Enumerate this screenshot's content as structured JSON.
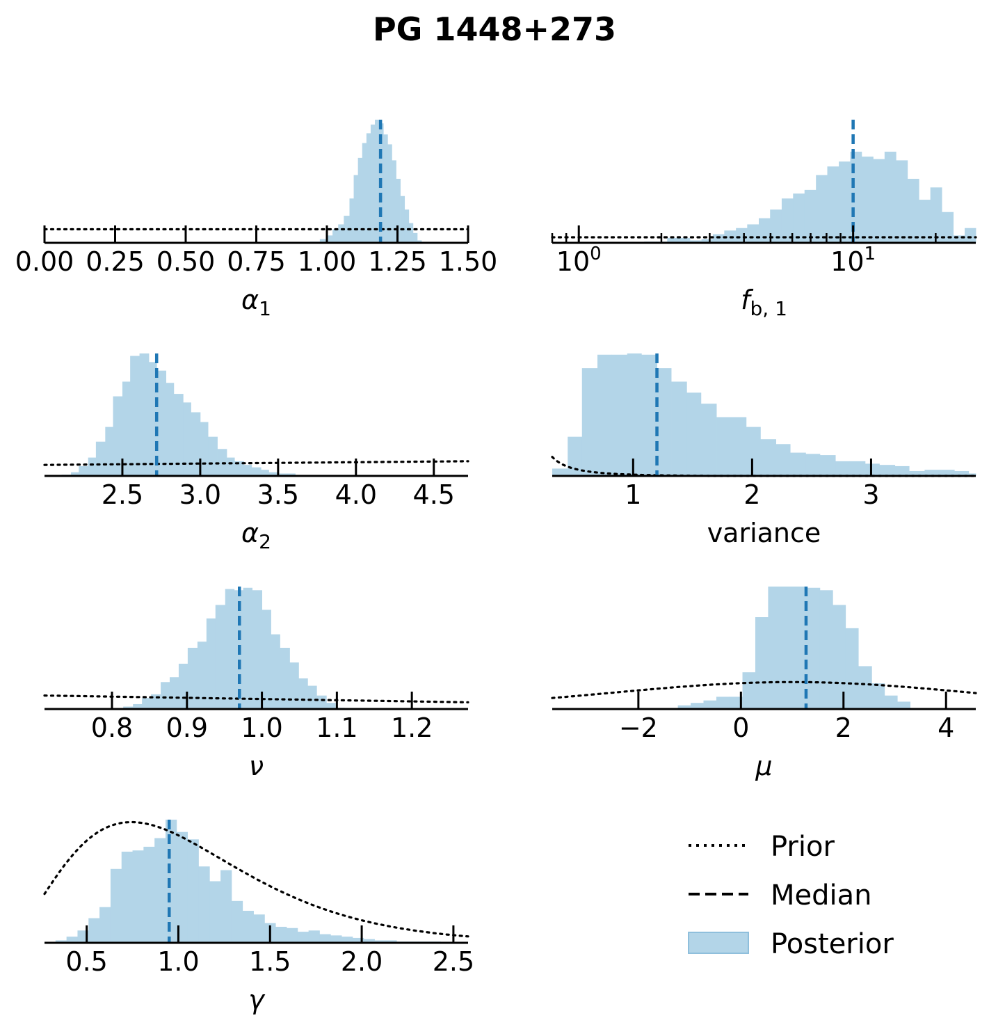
{
  "title": "PG 1448+273",
  "legend": {
    "location": "bottom-right",
    "items": [
      {
        "label": "Prior",
        "style": "dotted"
      },
      {
        "label": "Median",
        "style": "dashed"
      },
      {
        "label": "Posterior",
        "style": "fill"
      }
    ]
  },
  "colors": {
    "posterior_fill": "#b3d5e8",
    "median_line": "#1f77b4",
    "prior_line": "#000000",
    "legend_patch_edge": "#8fbfdc"
  },
  "chart_data": [
    {
      "type": "histogram",
      "param": "alpha1",
      "xlabel": {
        "base": "α",
        "sub": "1",
        "italic": true
      },
      "xlim": [
        0.0,
        1.5
      ],
      "xscale": "linear",
      "ticks": [
        0.0,
        0.25,
        0.5,
        0.75,
        1.0,
        1.25,
        1.5
      ],
      "tick_labels": [
        "0.00",
        "0.25",
        "0.50",
        "0.75",
        "1.00",
        "1.25",
        "1.50"
      ],
      "bin_edges": [
        0.94,
        0.975,
        1.0,
        1.02,
        1.04,
        1.06,
        1.08,
        1.095,
        1.11,
        1.125,
        1.14,
        1.155,
        1.17,
        1.185,
        1.2,
        1.215,
        1.23,
        1.245,
        1.26,
        1.275,
        1.29,
        1.305,
        1.32,
        1.335
      ],
      "counts": [
        0.01,
        0.03,
        0.06,
        0.11,
        0.15,
        0.22,
        0.36,
        0.55,
        0.69,
        0.81,
        0.89,
        0.96,
        1.0,
        0.97,
        0.88,
        0.8,
        0.67,
        0.52,
        0.38,
        0.27,
        0.16,
        0.08,
        0.02
      ],
      "median": 1.19,
      "prior": {
        "kind": "uniform",
        "level": 0.11
      }
    },
    {
      "type": "histogram",
      "param": "f_b1",
      "xlabel": {
        "base": "f",
        "sub": "b, 1",
        "italic": true
      },
      "xlim": [
        0.8,
        28
      ],
      "xscale": "log",
      "ticks": [
        1,
        10
      ],
      "tick_labels": [
        {
          "base": "10",
          "exp": "0"
        },
        {
          "base": "10",
          "exp": "1"
        }
      ],
      "minor_ticks": [
        0.8,
        0.9,
        2,
        3,
        4,
        5,
        6,
        7,
        8,
        9,
        20
      ],
      "bin_edges": [
        0.8,
        0.88,
        0.97,
        1.07,
        1.18,
        1.3,
        1.43,
        1.57,
        1.73,
        1.91,
        2.1,
        2.31,
        2.54,
        2.8,
        3.08,
        3.39,
        3.74,
        4.11,
        4.53,
        4.98,
        5.49,
        6.04,
        6.65,
        7.32,
        8.05,
        8.87,
        9.76,
        10.74,
        11.83,
        13.02,
        14.33,
        15.78,
        17.37,
        19.12,
        21.05,
        23.18,
        25.51,
        28.0
      ],
      "counts": [
        0.0,
        0.0,
        0.0,
        0.0,
        0.0,
        0.0,
        0.0,
        0.0,
        0.01,
        0.01,
        0.04,
        0.04,
        0.02,
        0.03,
        0.07,
        0.1,
        0.12,
        0.15,
        0.2,
        0.27,
        0.36,
        0.4,
        0.43,
        0.55,
        0.62,
        0.66,
        0.74,
        0.7,
        0.68,
        0.74,
        0.67,
        0.52,
        0.35,
        0.45,
        0.25,
        0.06,
        0.12
      ],
      "median": 10.0,
      "prior": {
        "kind": "uniform",
        "level": 0.045
      }
    },
    {
      "type": "histogram",
      "param": "alpha2",
      "xlabel": {
        "base": "α",
        "sub": "2",
        "italic": true
      },
      "xlim": [
        2.0,
        4.72
      ],
      "xscale": "linear",
      "ticks": [
        2.5,
        3.0,
        3.5,
        4.0,
        4.5
      ],
      "tick_labels": [
        "2.5",
        "3.0",
        "3.5",
        "4.0",
        "4.5"
      ],
      "bin_edges": [
        2.0,
        2.06,
        2.11,
        2.17,
        2.22,
        2.28,
        2.33,
        2.39,
        2.44,
        2.5,
        2.55,
        2.61,
        2.67,
        2.72,
        2.78,
        2.83,
        2.89,
        2.94,
        3.0,
        3.05,
        3.11,
        3.17,
        3.22,
        3.28,
        3.33,
        3.39,
        3.44,
        3.5,
        3.56,
        3.61
      ],
      "counts": [
        0.0,
        0.0,
        0.01,
        0.03,
        0.08,
        0.15,
        0.28,
        0.4,
        0.65,
        0.77,
        0.98,
        1.0,
        0.93,
        0.86,
        0.76,
        0.67,
        0.6,
        0.52,
        0.44,
        0.32,
        0.22,
        0.15,
        0.12,
        0.09,
        0.07,
        0.05,
        0.03,
        0.02,
        0.02
      ],
      "median": 2.72,
      "prior": {
        "kind": "linear",
        "from": [
          2.0,
          0.09
        ],
        "to": [
          4.72,
          0.12
        ]
      }
    },
    {
      "type": "histogram",
      "param": "variance",
      "xlabel": {
        "text": "variance"
      },
      "xlim": [
        0.32,
        3.88
      ],
      "xscale": "linear",
      "ticks": [
        1,
        2,
        3
      ],
      "tick_labels": [
        "1",
        "2",
        "3"
      ],
      "bin_edges": [
        0.32,
        0.45,
        0.57,
        0.7,
        0.82,
        0.95,
        1.07,
        1.2,
        1.32,
        1.45,
        1.57,
        1.7,
        1.82,
        1.95,
        2.07,
        2.2,
        2.32,
        2.45,
        2.57,
        2.7,
        2.82,
        2.95,
        3.07,
        3.2,
        3.32,
        3.45,
        3.57,
        3.7,
        3.82,
        3.88
      ],
      "counts": [
        0.06,
        0.32,
        0.88,
        0.99,
        0.99,
        1.0,
        0.99,
        0.88,
        0.77,
        0.68,
        0.59,
        0.48,
        0.48,
        0.4,
        0.3,
        0.26,
        0.19,
        0.18,
        0.17,
        0.12,
        0.12,
        0.1,
        0.09,
        0.08,
        0.04,
        0.05,
        0.05,
        0.04,
        0.02
      ],
      "median": 1.2,
      "prior": {
        "kind": "inverse",
        "scale": 0.0165,
        "offset": -0.006
      }
    },
    {
      "type": "histogram",
      "param": "nu",
      "xlabel": {
        "base": "ν",
        "italic": true
      },
      "xlim": [
        0.71,
        1.275
      ],
      "xscale": "linear",
      "ticks": [
        0.8,
        0.9,
        1.0,
        1.1,
        1.2
      ],
      "tick_labels": [
        "0.8",
        "0.9",
        "1.0",
        "1.1",
        "1.2"
      ],
      "bin_edges": [
        0.803,
        0.815,
        0.828,
        0.84,
        0.852,
        0.865,
        0.877,
        0.889,
        0.901,
        0.914,
        0.926,
        0.938,
        0.951,
        0.963,
        0.975,
        0.987,
        1.0,
        1.012,
        1.024,
        1.037,
        1.049,
        1.061,
        1.073,
        1.086,
        1.098,
        1.11
      ],
      "counts": [
        0.0,
        0.02,
        0.04,
        0.09,
        0.12,
        0.22,
        0.26,
        0.37,
        0.5,
        0.55,
        0.74,
        0.85,
        0.98,
        0.97,
        0.99,
        0.97,
        0.81,
        0.61,
        0.5,
        0.38,
        0.25,
        0.19,
        0.11,
        0.05,
        0.01
      ],
      "median": 0.97,
      "prior": {
        "kind": "linear",
        "from": [
          0.71,
          0.11
        ],
        "to": [
          1.275,
          0.055
        ]
      }
    },
    {
      "type": "histogram",
      "param": "mu",
      "xlabel": {
        "base": "μ",
        "italic": true
      },
      "xlim": [
        -3.68,
        4.58
      ],
      "xscale": "linear",
      "ticks": [
        -2,
        0,
        2,
        4
      ],
      "tick_labels": [
        "−2",
        "0",
        "2",
        "4"
      ],
      "bin_edges": [
        -1.23,
        -0.98,
        -0.73,
        -0.48,
        -0.23,
        0.03,
        0.28,
        0.53,
        0.78,
        1.03,
        1.29,
        1.54,
        1.79,
        2.04,
        2.29,
        2.55,
        2.8,
        3.05,
        3.3
      ],
      "counts": [
        0.03,
        0.05,
        0.07,
        0.1,
        0.1,
        0.3,
        0.75,
        1.0,
        1.0,
        1.0,
        0.99,
        0.97,
        0.85,
        0.66,
        0.35,
        0.21,
        0.11,
        0.06
      ],
      "median": 1.27,
      "prior": {
        "kind": "gaussian",
        "mean": 1.0,
        "sigma": 3.5,
        "peak": 0.22
      }
    },
    {
      "type": "histogram",
      "param": "gamma",
      "xlabel": {
        "base": "γ",
        "italic": true
      },
      "xlim": [
        0.27,
        2.58
      ],
      "xscale": "linear",
      "ticks": [
        0.5,
        1.0,
        1.5,
        2.0,
        2.5
      ],
      "tick_labels": [
        "0.5",
        "1.0",
        "1.5",
        "2.0",
        "2.5"
      ],
      "bin_edges": [
        0.27,
        0.33,
        0.39,
        0.45,
        0.51,
        0.57,
        0.63,
        0.69,
        0.75,
        0.81,
        0.87,
        0.93,
        0.99,
        1.05,
        1.11,
        1.17,
        1.23,
        1.29,
        1.35,
        1.41,
        1.47,
        1.53,
        1.59,
        1.65,
        1.71,
        1.77,
        1.83,
        1.89,
        1.95,
        2.01,
        2.07,
        2.13,
        2.19,
        2.25,
        2.31,
        2.37,
        2.43,
        2.49,
        2.58
      ],
      "counts": [
        0.0,
        0.02,
        0.05,
        0.1,
        0.2,
        0.29,
        0.6,
        0.74,
        0.75,
        0.78,
        0.85,
        1.0,
        0.9,
        0.84,
        0.62,
        0.5,
        0.59,
        0.34,
        0.26,
        0.23,
        0.16,
        0.13,
        0.12,
        0.09,
        0.1,
        0.07,
        0.06,
        0.05,
        0.04,
        0.03,
        0.02,
        0.02,
        0.01,
        0.01,
        0.01,
        0.01,
        0.0,
        0.0
      ],
      "median": 0.95,
      "prior": {
        "kind": "gamma",
        "k": 3.4,
        "theta": 0.31,
        "peak": 0.98
      }
    }
  ]
}
